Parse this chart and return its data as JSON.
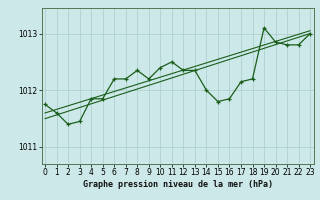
{
  "title": "Graphe pression niveau de la mer (hPa)",
  "bg_color": "#cce8e8",
  "grid_color": "#aacccc",
  "line_color": "#1a5e1a",
  "frame_color": "#336633",
  "x_min": 0,
  "x_max": 23,
  "y_min": 1010.7,
  "y_max": 1013.45,
  "yticks": [
    1011,
    1012,
    1013
  ],
  "xticks": [
    0,
    1,
    2,
    3,
    4,
    5,
    6,
    7,
    8,
    9,
    10,
    11,
    12,
    13,
    14,
    15,
    16,
    17,
    18,
    19,
    20,
    21,
    22,
    23
  ],
  "hours": [
    0,
    1,
    2,
    3,
    4,
    5,
    6,
    7,
    8,
    9,
    10,
    11,
    12,
    13,
    14,
    15,
    16,
    17,
    18,
    19,
    20,
    21,
    22,
    23
  ],
  "pressure": [
    1011.75,
    1011.6,
    1011.4,
    1011.45,
    1011.85,
    1011.85,
    1012.2,
    1012.2,
    1012.35,
    1012.2,
    1012.4,
    1012.5,
    1012.35,
    1012.35,
    1012.0,
    1011.8,
    1011.85,
    1012.15,
    1012.2,
    1013.1,
    1012.85,
    1012.8,
    1012.8,
    1013.0
  ],
  "trend1_x": [
    0,
    23
  ],
  "trend1_y": [
    1011.5,
    1013.0
  ],
  "trend2_x": [
    0,
    23
  ],
  "trend2_y": [
    1011.6,
    1013.05
  ],
  "xlabel_fontsize": 6,
  "tick_fontsize": 5.5,
  "ylabel_fontsize": 6
}
